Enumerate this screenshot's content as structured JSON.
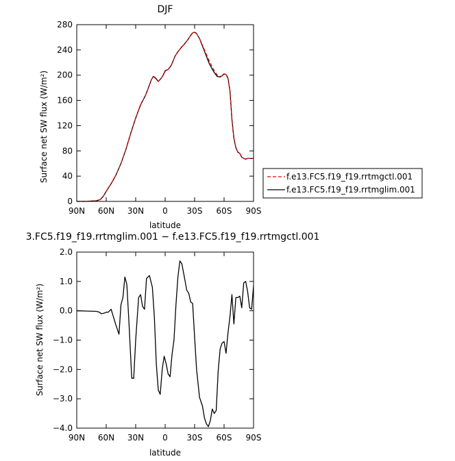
{
  "chart_data": [
    {
      "type": "line",
      "title": "DJF",
      "xlabel": "latitude",
      "ylabel": "Surface net SW flux (W/m²)",
      "xlim": [
        90,
        -90
      ],
      "ylim": [
        0,
        280
      ],
      "x_ticks": [
        {
          "v": 90,
          "label": "90N"
        },
        {
          "v": 60,
          "label": "60N"
        },
        {
          "v": 30,
          "label": "30N"
        },
        {
          "v": 0,
          "label": "0"
        },
        {
          "v": -30,
          "label": "30S"
        },
        {
          "v": -60,
          "label": "60S"
        },
        {
          "v": -90,
          "label": "90S"
        }
      ],
      "y_ticks": [
        {
          "v": 0,
          "label": "0"
        },
        {
          "v": 40,
          "label": "40"
        },
        {
          "v": 80,
          "label": "80"
        },
        {
          "v": 120,
          "label": "120"
        },
        {
          "v": 160,
          "label": "160"
        },
        {
          "v": 200,
          "label": "200"
        },
        {
          "v": 240,
          "label": "240"
        },
        {
          "v": 280,
          "label": "280"
        }
      ],
      "legend": "right",
      "series": [
        {
          "name": "f.e13.FC5.f19_f19.rrtmgctl.001",
          "color": "#e00000",
          "dash": "dashed",
          "x": [
            90,
            80,
            70,
            66,
            63,
            60,
            55,
            50,
            45,
            40,
            35,
            30,
            25,
            20,
            17,
            14,
            12,
            10,
            7,
            4,
            2,
            0,
            -3,
            -6,
            -8,
            -10,
            -13,
            -16,
            -20,
            -23,
            -26,
            -28,
            -30,
            -32,
            -35,
            -40,
            -45,
            -50,
            -53,
            -56,
            -58,
            -60,
            -62,
            -64,
            -66,
            -68,
            -70,
            -72,
            -74,
            -76,
            -78,
            -80,
            -82,
            -84,
            -86,
            -88,
            -90
          ],
          "y": [
            0,
            0,
            1,
            3,
            8,
            16,
            28,
            42,
            60,
            82,
            108,
            132,
            153,
            168,
            180,
            193,
            198,
            195,
            190,
            195,
            200,
            206,
            209,
            215,
            222,
            230,
            237,
            243,
            250,
            256,
            263,
            267,
            268,
            266,
            258,
            240,
            222,
            207,
            200,
            198,
            199,
            202,
            201,
            195,
            175,
            130,
            100,
            85,
            78,
            76,
            70,
            68,
            67,
            68,
            68,
            68,
            68
          ]
        },
        {
          "name": "f.e13.FC5.f19_f19.rrtmglim.001",
          "color": "#000000",
          "dash": "solid",
          "x": [
            90,
            80,
            70,
            66,
            63,
            60,
            55,
            50,
            45,
            40,
            35,
            30,
            25,
            20,
            17,
            14,
            12,
            10,
            7,
            4,
            2,
            0,
            -3,
            -6,
            -8,
            -10,
            -13,
            -16,
            -20,
            -23,
            -26,
            -28,
            -30,
            -32,
            -35,
            -40,
            -45,
            -50,
            -53,
            -56,
            -58,
            -60,
            -62,
            -64,
            -66,
            -68,
            -70,
            -72,
            -74,
            -76,
            -78,
            -80,
            -82,
            -84,
            -86,
            -88,
            -90
          ],
          "y": [
            0,
            0,
            1,
            3,
            8,
            16,
            28,
            42,
            60,
            82,
            108,
            132,
            153,
            168,
            180,
            193,
            198,
            196,
            190,
            195,
            200,
            207,
            209,
            215,
            222,
            230,
            237,
            243,
            250,
            256,
            263,
            267,
            268,
            266,
            258,
            238,
            218,
            204,
            198,
            197,
            199,
            202,
            201,
            195,
            175,
            130,
            100,
            85,
            78,
            76,
            70,
            68,
            67,
            68,
            68,
            68,
            68
          ]
        }
      ]
    },
    {
      "type": "line",
      "title": "3.FC5.f19_f19.rrtmglim.001 − f.e13.FC5.f19_f19.rrtmgctl.001",
      "xlabel": "latitude",
      "ylabel": "Surface net SW flux (W/m²)",
      "xlim": [
        90,
        -90
      ],
      "ylim": [
        -4.0,
        2.0
      ],
      "x_ticks": [
        {
          "v": 90,
          "label": "90N"
        },
        {
          "v": 60,
          "label": "60N"
        },
        {
          "v": 30,
          "label": "30N"
        },
        {
          "v": 0,
          "label": "0"
        },
        {
          "v": -30,
          "label": "30S"
        },
        {
          "v": -60,
          "label": "60S"
        },
        {
          "v": -90,
          "label": "90S"
        }
      ],
      "y_ticks": [
        {
          "v": -4,
          "label": "−4.0"
        },
        {
          "v": -3,
          "label": "−3.0"
        },
        {
          "v": -2,
          "label": "−2.0"
        },
        {
          "v": -1,
          "label": "−1.0"
        },
        {
          "v": 0,
          "label": "0.0"
        },
        {
          "v": 1,
          "label": "1.0"
        },
        {
          "v": 2,
          "label": "2.0"
        }
      ],
      "series": [
        {
          "name": "",
          "color": "#000000",
          "dash": "solid",
          "x": [
            90,
            70,
            67,
            65,
            62,
            60,
            58,
            55,
            50,
            47,
            45,
            43,
            41,
            39,
            37,
            34,
            32,
            30,
            27,
            25,
            23,
            21,
            19,
            16,
            13,
            11,
            9,
            7,
            5,
            3,
            1,
            -1,
            -3,
            -5,
            -7,
            -9,
            -11,
            -13,
            -15,
            -17,
            -19,
            -22,
            -24,
            -26,
            -28,
            -30,
            -32,
            -35,
            -38,
            -40,
            -42,
            -44,
            -46,
            -48,
            -50,
            -52,
            -54,
            -56,
            -58,
            -60,
            -62,
            -64,
            -66,
            -68,
            -70,
            -72,
            -74,
            -76,
            -78,
            -80,
            -82,
            -84,
            -86,
            -88,
            -90
          ],
          "y": [
            0.0,
            -0.02,
            -0.05,
            -0.1,
            -0.08,
            -0.05,
            -0.05,
            0.05,
            -0.5,
            -0.8,
            0.2,
            0.45,
            1.15,
            0.9,
            -0.3,
            -2.3,
            -2.3,
            -1.0,
            0.45,
            0.55,
            0.15,
            0.05,
            1.1,
            1.2,
            0.8,
            -0.2,
            -1.8,
            -2.7,
            -2.85,
            -2.0,
            -1.55,
            -1.8,
            -2.15,
            -2.25,
            -1.5,
            -1.0,
            0.2,
            1.15,
            1.7,
            1.6,
            1.25,
            0.7,
            0.6,
            0.3,
            0.25,
            -0.9,
            -2.0,
            -2.95,
            -3.25,
            -3.65,
            -3.85,
            -3.95,
            -3.75,
            -3.35,
            -3.5,
            -3.4,
            -2.05,
            -1.3,
            -1.1,
            -1.05,
            -1.45,
            -0.75,
            -0.2,
            0.55,
            -0.45,
            0.45,
            0.45,
            0.5,
            0.1,
            0.95,
            1.0,
            0.65,
            0.1,
            0.05,
            0.85
          ]
        }
      ]
    }
  ]
}
